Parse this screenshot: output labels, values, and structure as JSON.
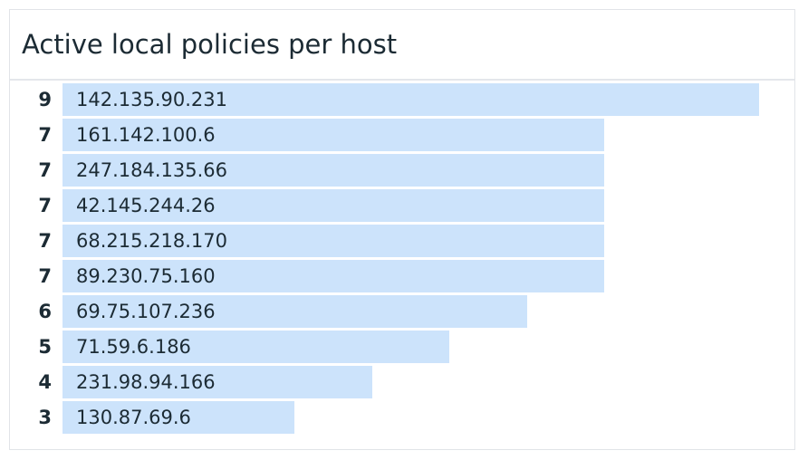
{
  "title": "Active local policies per host",
  "chart_data": {
    "type": "bar",
    "orientation": "horizontal",
    "title": "Active local policies per host",
    "xlim": [
      0,
      9
    ],
    "bar_color": "#cce3fb",
    "categories": [
      "142.135.90.231",
      "161.142.100.6",
      "247.184.135.66",
      "42.145.244.26",
      "68.215.218.170",
      "89.230.75.160",
      "69.75.107.236",
      "71.59.6.186",
      "231.98.94.166",
      "130.87.69.6"
    ],
    "values": [
      9,
      7,
      7,
      7,
      7,
      7,
      6,
      5,
      4,
      3
    ]
  }
}
